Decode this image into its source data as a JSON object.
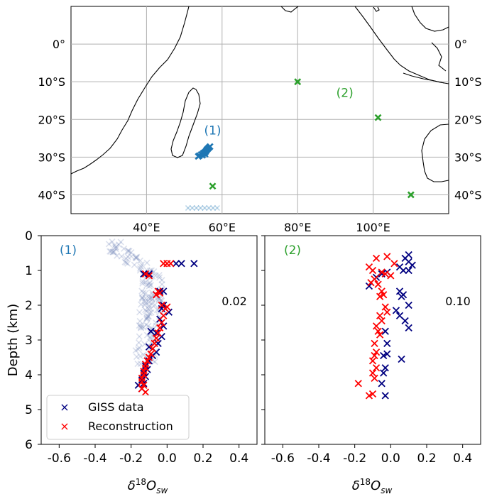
{
  "chart_data": [
    {
      "type": "map",
      "lon_ticks": [
        "40°E",
        "60°E",
        "80°E",
        "100°E"
      ],
      "lat_ticks": [
        "0°",
        "10°S",
        "20°S",
        "30°S",
        "40°S"
      ],
      "lon_values": [
        40,
        60,
        80,
        100
      ],
      "lat_values": [
        0,
        -10,
        -20,
        -30,
        -40
      ],
      "lon_range": [
        20,
        120
      ],
      "lat_range": [
        -45,
        10
      ],
      "grid": true,
      "regions": [
        {
          "label": "(1)",
          "color": "#1f77b4",
          "label_lon": 57.5,
          "label_lat": -24.0,
          "points": [
            [
              54,
              -29.6
            ],
            [
              54.5,
              -29.3
            ],
            [
              55,
              -29
            ],
            [
              55.3,
              -28.8
            ],
            [
              55.6,
              -28.6
            ],
            [
              55.8,
              -28.3
            ],
            [
              56,
              -28
            ],
            [
              56.2,
              -27.8
            ],
            [
              56.5,
              -27.5
            ],
            [
              55.5,
              -29.2
            ],
            [
              54.8,
              -29.5
            ],
            [
              56.8,
              -27.2
            ],
            [
              53.7,
              -29.8
            ]
          ]
        },
        {
          "label": "(2)",
          "color": "#2ca02c",
          "label_lon": 92.5,
          "label_lat": -14.0,
          "points": [
            [
              80,
              -10
            ],
            [
              101.3,
              -19.5
            ],
            [
              110,
              -40
            ],
            [
              57.5,
              -37.7
            ]
          ]
        }
      ]
    },
    {
      "type": "scatter",
      "panel_label": "(1)",
      "annotation": "0.02",
      "ylabel": "Depth (km)",
      "xlabel": "δ18Osw",
      "xlim": [
        -0.7,
        0.5
      ],
      "ylim": [
        6,
        0
      ],
      "x_ticks": [
        "-0.6",
        "-0.4",
        "-0.2",
        "0.0",
        "0.2",
        "0.4"
      ],
      "x_tick_values": [
        -0.6,
        -0.4,
        -0.2,
        0.0,
        0.2,
        0.4
      ],
      "y_ticks": [
        "0",
        "1",
        "2",
        "3",
        "4",
        "5",
        "6"
      ],
      "legend_position": "lower left",
      "series": [
        {
          "name": "GISS data",
          "color": "#000080",
          "marker": "x",
          "x": [
            0.15,
            0.08,
            0.05,
            -0.1,
            -0.13,
            -0.04,
            -0.02,
            -0.06,
            -0.02,
            -0.03,
            0.01,
            -0.04,
            -0.02,
            -0.06,
            -0.03,
            -0.09,
            -0.05,
            -0.1,
            -0.06,
            -0.08,
            -0.1,
            -0.12,
            -0.11,
            -0.13,
            -0.12,
            -0.14,
            -0.13,
            -0.16,
            -0.14
          ],
          "y": [
            0.8,
            0.8,
            0.8,
            1.1,
            1.1,
            1.6,
            1.6,
            1.7,
            2.0,
            2.1,
            2.2,
            2.4,
            2.6,
            2.8,
            2.9,
            2.75,
            3.1,
            3.2,
            3.35,
            3.45,
            3.6,
            3.75,
            3.85,
            3.95,
            4.05,
            4.15,
            4.25,
            4.3,
            4.4
          ]
        },
        {
          "name": "Reconstruction",
          "color": "#ff0000",
          "marker": "x",
          "x": [
            -0.02,
            0.0,
            0.02,
            -0.12,
            -0.1,
            -0.05,
            -0.04,
            -0.06,
            -0.03,
            0.0,
            -0.01,
            -0.02,
            -0.03,
            -0.04,
            -0.05,
            -0.06,
            -0.07,
            -0.08,
            -0.09,
            -0.1,
            -0.11,
            -0.12,
            -0.12,
            -0.13,
            -0.13,
            -0.14,
            -0.14,
            -0.13,
            -0.14,
            -0.12
          ],
          "y": [
            0.8,
            0.8,
            0.8,
            1.1,
            1.15,
            1.6,
            1.65,
            1.7,
            2.0,
            2.05,
            2.1,
            2.3,
            2.5,
            2.65,
            2.8,
            2.95,
            3.1,
            3.25,
            3.4,
            3.5,
            3.6,
            3.7,
            3.8,
            3.9,
            4.0,
            4.1,
            4.2,
            4.3,
            4.4,
            4.5
          ]
        }
      ]
    },
    {
      "type": "scatter",
      "panel_label": "(2)",
      "annotation": "0.10",
      "xlabel": "δ18Osw",
      "xlim": [
        -0.7,
        0.5
      ],
      "ylim": [
        6,
        0
      ],
      "x_ticks": [
        "-0.6",
        "-0.4",
        "-0.2",
        "0.0",
        "0.2",
        "0.4"
      ],
      "x_tick_values": [
        -0.6,
        -0.4,
        -0.2,
        0.0,
        0.2,
        0.4
      ],
      "series": [
        {
          "name": "GISS data",
          "color": "#000080",
          "marker": "x",
          "x": [
            0.1,
            0.08,
            0.1,
            0.12,
            0.05,
            0.07,
            0.1,
            -0.02,
            -0.05,
            0.05,
            0.07,
            0.06,
            0.1,
            0.03,
            0.05,
            0.08,
            0.1,
            -0.12,
            -0.08,
            -0.03,
            -0.02,
            0.06,
            -0.02,
            -0.04,
            -0.03,
            -0.04,
            -0.05,
            -0.03
          ],
          "y": [
            0.55,
            0.65,
            0.75,
            0.85,
            0.9,
            1.0,
            1.0,
            1.05,
            1.1,
            1.6,
            1.7,
            1.75,
            2.0,
            2.15,
            2.3,
            2.45,
            2.65,
            1.45,
            1.2,
            2.75,
            3.1,
            3.55,
            3.4,
            3.45,
            3.8,
            3.95,
            4.25,
            4.6
          ]
        },
        {
          "name": "Reconstruction",
          "color": "#ff0000",
          "marker": "x",
          "x": [
            -0.08,
            -0.02,
            0.02,
            -0.12,
            -0.1,
            -0.05,
            -0.03,
            0.0,
            -0.09,
            -0.11,
            -0.07,
            -0.05,
            -0.04,
            -0.06,
            -0.03,
            -0.02,
            -0.06,
            -0.05,
            -0.08,
            -0.07,
            -0.06,
            -0.09,
            -0.08,
            -0.09,
            -0.1,
            -0.08,
            -0.1,
            -0.09,
            -0.18,
            -0.1,
            -0.12
          ],
          "y": [
            0.65,
            0.6,
            0.8,
            0.9,
            1.0,
            1.05,
            1.1,
            1.15,
            1.25,
            1.35,
            1.4,
            1.6,
            1.7,
            1.75,
            2.05,
            2.2,
            2.3,
            2.45,
            2.6,
            2.75,
            2.85,
            3.1,
            3.35,
            3.45,
            3.6,
            3.8,
            3.95,
            4.1,
            4.25,
            4.55,
            4.6
          ]
        }
      ]
    }
  ]
}
